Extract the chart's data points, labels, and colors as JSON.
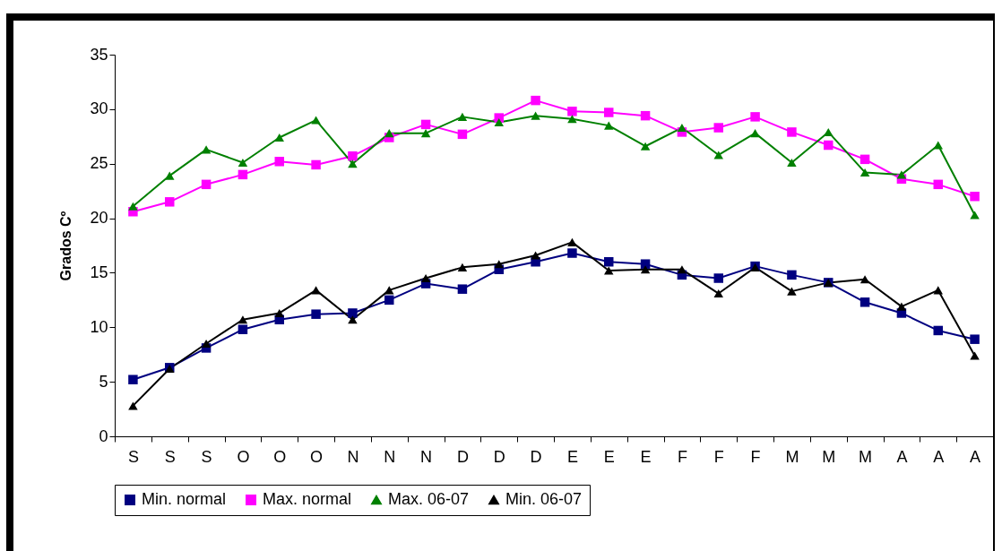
{
  "chart_data": {
    "type": "line",
    "ylabel": "Grados Cº",
    "categories": [
      "S",
      "S",
      "S",
      "O",
      "O",
      "O",
      "N",
      "N",
      "N",
      "D",
      "D",
      "D",
      "E",
      "E",
      "E",
      "F",
      "F",
      "F",
      "M",
      "M",
      "M",
      "A",
      "A",
      "A"
    ],
    "series": [
      {
        "name": "Min. normal",
        "color": "#000080",
        "marker": "square",
        "values": [
          5.2,
          6.3,
          8.1,
          9.8,
          10.7,
          11.2,
          11.3,
          12.5,
          14,
          13.5,
          15.3,
          16,
          16.8,
          16,
          15.8,
          14.8,
          14.5,
          15.6,
          14.8,
          14.1,
          12.3,
          11.3,
          9.7,
          8.9
        ]
      },
      {
        "name": "Max. normal",
        "color": "#ff00ff",
        "marker": "square",
        "values": [
          20.6,
          21.5,
          23.1,
          24,
          25.2,
          24.9,
          25.7,
          27.4,
          28.6,
          27.7,
          29.2,
          30.8,
          29.8,
          29.7,
          29.4,
          27.9,
          28.3,
          29.3,
          27.9,
          26.7,
          25.4,
          23.6,
          23.1,
          22
        ]
      },
      {
        "name": "Max. 06-07",
        "color": "#008000",
        "marker": "triangle",
        "values": [
          21.1,
          23.9,
          26.3,
          25.1,
          27.4,
          29,
          25,
          27.8,
          27.8,
          29.3,
          28.8,
          29.4,
          29.1,
          28.5,
          26.6,
          28.3,
          25.8,
          27.8,
          25.1,
          27.9,
          24.2,
          24,
          26.7,
          20.3
        ]
      },
      {
        "name": "Min. 06-07",
        "color": "#000000",
        "marker": "triangle",
        "values": [
          2.8,
          6.2,
          8.5,
          10.7,
          11.3,
          13.4,
          10.7,
          13.4,
          14.5,
          15.5,
          15.8,
          16.6,
          17.8,
          15.2,
          15.3,
          15.3,
          13.1,
          15.5,
          13.3,
          14.1,
          14.4,
          11.9,
          13.4,
          7.4
        ]
      }
    ],
    "ylim": [
      0,
      35
    ],
    "yticks": [
      0,
      5,
      10,
      15,
      20,
      25,
      30,
      35
    ],
    "grid": false,
    "legend": "bottom"
  }
}
